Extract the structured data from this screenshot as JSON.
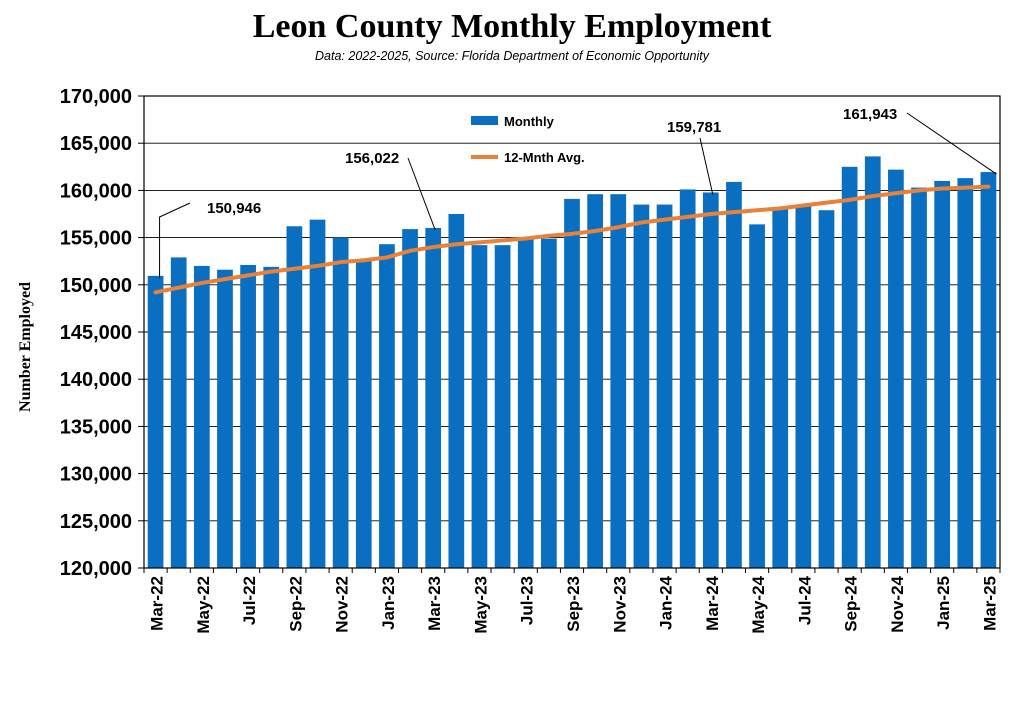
{
  "chart_data": {
    "type": "bar",
    "title": "Leon County Monthly Employment",
    "subtitle": "Data: 2022-2025, Source: Florida Department of Economic Opportunity",
    "xlabel": "",
    "ylabel": "Number Employed",
    "ylim": [
      120000,
      170000
    ],
    "ytick_step": 5000,
    "ytick_labels": [
      "120,000",
      "125,000",
      "130,000",
      "135,000",
      "140,000",
      "145,000",
      "150,000",
      "155,000",
      "160,000",
      "165,000",
      "170,000"
    ],
    "grid": "horizontal",
    "legend_placement": "top-center",
    "categories": [
      "Mar-22",
      "Apr-22",
      "May-22",
      "Jun-22",
      "Jul-22",
      "Aug-22",
      "Sep-22",
      "Oct-22",
      "Nov-22",
      "Dec-22",
      "Jan-23",
      "Feb-23",
      "Mar-23",
      "Apr-23",
      "May-23",
      "Jun-23",
      "Jul-23",
      "Aug-23",
      "Sep-23",
      "Oct-23",
      "Nov-23",
      "Dec-23",
      "Jan-24",
      "Feb-24",
      "Mar-24",
      "Apr-24",
      "May-24",
      "Jun-24",
      "Jul-24",
      "Aug-24",
      "Sep-24",
      "Oct-24",
      "Nov-24",
      "Dec-24",
      "Jan-25",
      "Feb-25",
      "Mar-25"
    ],
    "xtick_labels": [
      "Mar-22",
      "May-22",
      "Jul-22",
      "Sep-22",
      "Nov-22",
      "Jan-23",
      "Mar-23",
      "May-23",
      "Jul-23",
      "Sep-23",
      "Nov-23",
      "Jan-24",
      "Mar-24",
      "May-24",
      "Jul-24",
      "Sep-24",
      "Nov-24",
      "Jan-25",
      "Mar-25"
    ],
    "series": [
      {
        "name": "Monthly",
        "kind": "bar",
        "color": "#0a6fc0",
        "values": [
          150946,
          152900,
          152000,
          151600,
          152100,
          151900,
          156200,
          156900,
          155000,
          152600,
          154300,
          155900,
          156022,
          157500,
          154200,
          154200,
          154800,
          154900,
          159100,
          159600,
          159600,
          158500,
          158500,
          160100,
          159781,
          160900,
          156400,
          158200,
          158300,
          157900,
          162500,
          163600,
          162200,
          160300,
          161000,
          161300,
          161943
        ]
      },
      {
        "name": "12-Mnth Avg.",
        "kind": "line",
        "color": "#e8823a",
        "values": [
          149200,
          149700,
          150200,
          150600,
          151000,
          151400,
          151700,
          152000,
          152400,
          152600,
          152900,
          153600,
          154000,
          154300,
          154500,
          154700,
          154900,
          155200,
          155400,
          155700,
          156100,
          156600,
          156900,
          157200,
          157500,
          157700,
          157900,
          158100,
          158400,
          158700,
          159000,
          159400,
          159700,
          160000,
          160200,
          160300,
          160400
        ]
      }
    ],
    "annotations": [
      {
        "text": "150,946",
        "category": "Mar-22",
        "value": 150946
      },
      {
        "text": "156,022",
        "category": "Mar-23",
        "value": 156022
      },
      {
        "text": "159,781",
        "category": "Mar-24",
        "value": 159781
      },
      {
        "text": "161,943",
        "category": "Mar-25",
        "value": 161943
      }
    ]
  }
}
